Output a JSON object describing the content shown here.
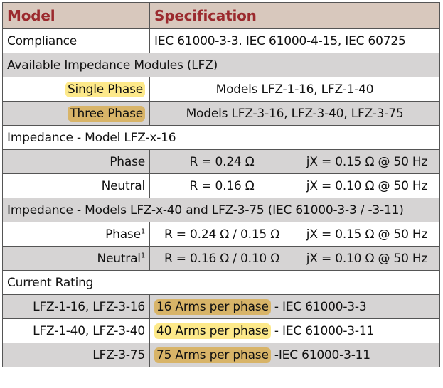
{
  "header": {
    "col1": "Model",
    "col2": "Specification"
  },
  "compliance": {
    "label": "Compliance",
    "value": "IEC 61000-3-3. IEC 61000-4-15, IEC 60725"
  },
  "modules": {
    "title": "Available Impedance Modules (LFZ)",
    "single_label": "Single Phase",
    "single_value": "Models LFZ-1-16, LFZ-1-40",
    "three_label": "Three Phase",
    "three_value": "Models LFZ-3-16, LFZ-3-40, LFZ-3-75"
  },
  "impedance16": {
    "title": "Impedance - Model LFZ-x-16",
    "rows": [
      {
        "label": "Phase",
        "r": "R = 0.24 Ω",
        "jx": "jX = 0.15 Ω @ 50 Hz"
      },
      {
        "label": "Neutral",
        "r": "R = 0.16 Ω",
        "jx": "jX = 0.10 Ω @ 50 Hz"
      }
    ]
  },
  "impedance40": {
    "title": "Impedance - Models LFZ-x-40 and LFZ-3-75  (IEC 61000-3-3 / -3-11)",
    "rows": [
      {
        "label": "Phase",
        "sup": "1",
        "r": "R = 0.24 Ω / 0.15 Ω",
        "jx": "jX = 0.15 Ω @ 50 Hz"
      },
      {
        "label": "Neutral",
        "sup": "1",
        "r": "R = 0.16 Ω / 0.10 Ω",
        "jx": "jX = 0.10 Ω @ 50 Hz"
      }
    ]
  },
  "current": {
    "title": "Current Rating",
    "rows": [
      {
        "label": "LFZ-1-16, LFZ-3-16",
        "highlight": "16 Arms per phase",
        "rest": " - IEC 61000-3-3"
      },
      {
        "label": "LFZ-1-40, LFZ-3-40",
        "highlight": "40 Arms per phase",
        "rest": " - IEC 61000-3-11"
      },
      {
        "label": "LFZ-3-75",
        "highlight": "75 Arms per phase",
        "rest": " -IEC 61000-3-11"
      }
    ]
  },
  "colors": {
    "header_bg": "#d8c8bd",
    "header_text": "#9b2a2e",
    "row_gray": "#d6d4d4",
    "highlight_yellow": "#fde98a",
    "highlight_khaki": "#d8b468"
  }
}
